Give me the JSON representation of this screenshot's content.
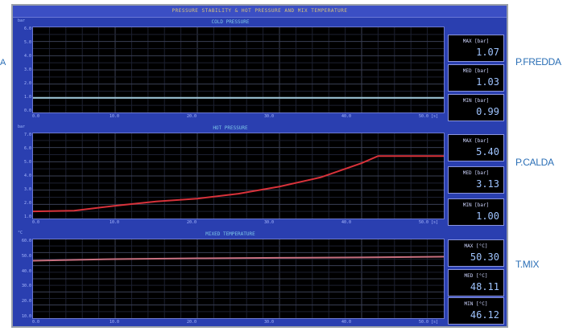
{
  "window": {
    "title": "PRESSURE STABILITY & HOT PRESSURE AND MIX TEMPERATURE"
  },
  "edge_label": "A",
  "panels": [
    {
      "title": "COLD PRESSURE",
      "unit": "bar",
      "side_label": "P.FREDDA",
      "yticks": [
        "6.0",
        "5.0",
        "4.0",
        "3.0",
        "2.0",
        "1.0",
        "0.0"
      ],
      "xticks": [
        "0.0",
        "10.0",
        "20.0",
        "30.0",
        "40.0",
        "50.0 [s]"
      ],
      "stats": [
        {
          "label": "MAX [bar]",
          "value": "1.07"
        },
        {
          "label": "MED [bar]",
          "value": "1.03"
        },
        {
          "label": "MIN [bar]",
          "value": "0.99"
        }
      ]
    },
    {
      "title": "HOT PRESSURE",
      "unit": "bar",
      "side_label": "P.CALDA",
      "yticks": [
        "7.0",
        "6.0",
        "5.0",
        "4.0",
        "3.0",
        "2.0",
        "1.0"
      ],
      "xticks": [
        "0.0",
        "10.0",
        "20.0",
        "30.0",
        "40.0",
        "50.0 [s]"
      ],
      "stats": [
        {
          "label": "MAX [bar]",
          "value": "5.40"
        },
        {
          "label": "MED [bar]",
          "value": "3.13"
        },
        {
          "label": "MIN [bar]",
          "value": "1.00"
        }
      ]
    },
    {
      "title": "MIXED TEMPERATURE",
      "unit": "°C",
      "side_label": "T.MIX",
      "yticks": [
        "60.0",
        "50.0",
        "40.0",
        "30.0",
        "20.0",
        "10.0"
      ],
      "xticks": [
        "0.0",
        "10.0",
        "20.0",
        "30.0",
        "40.0",
        "50.0 [s]"
      ],
      "stats": [
        {
          "label": "MAX [°C]",
          "value": "50.30"
        },
        {
          "label": "MED [°C]",
          "value": "48.11"
        },
        {
          "label": "MIN [°C]",
          "value": "46.12"
        }
      ]
    }
  ],
  "chart_data": [
    {
      "type": "line",
      "title": "COLD PRESSURE",
      "ylabel": "bar",
      "ylim": [
        0.0,
        6.0
      ],
      "xlim": [
        0,
        50
      ],
      "x": [
        0,
        10,
        20,
        30,
        40,
        50
      ],
      "series": [
        {
          "values": [
            1.03,
            1.03,
            1.03,
            1.03,
            1.03,
            1.03
          ]
        }
      ],
      "color": "#9ec7d8",
      "grid": true
    },
    {
      "type": "line",
      "title": "HOT PRESSURE",
      "ylabel": "bar",
      "ylim": [
        1.0,
        7.0
      ],
      "xlim": [
        0,
        50
      ],
      "x": [
        0,
        5,
        10,
        15,
        20,
        25,
        30,
        35,
        40,
        42,
        45,
        50
      ],
      "series": [
        {
          "values": [
            1.5,
            1.55,
            1.9,
            2.2,
            2.4,
            2.75,
            3.25,
            3.9,
            4.9,
            5.4,
            5.4,
            5.4
          ]
        }
      ],
      "color": "#d8323a",
      "grid": true
    },
    {
      "type": "line",
      "title": "MIXED TEMPERATURE",
      "ylabel": "°C",
      "ylim": [
        10.0,
        60.0
      ],
      "xlim": [
        0,
        50
      ],
      "x": [
        0,
        10,
        20,
        30,
        40,
        50
      ],
      "series": [
        {
          "values": [
            46.5,
            47.5,
            48.0,
            48.3,
            48.6,
            49.0
          ]
        }
      ],
      "color": "#c87080",
      "grid": true
    }
  ]
}
